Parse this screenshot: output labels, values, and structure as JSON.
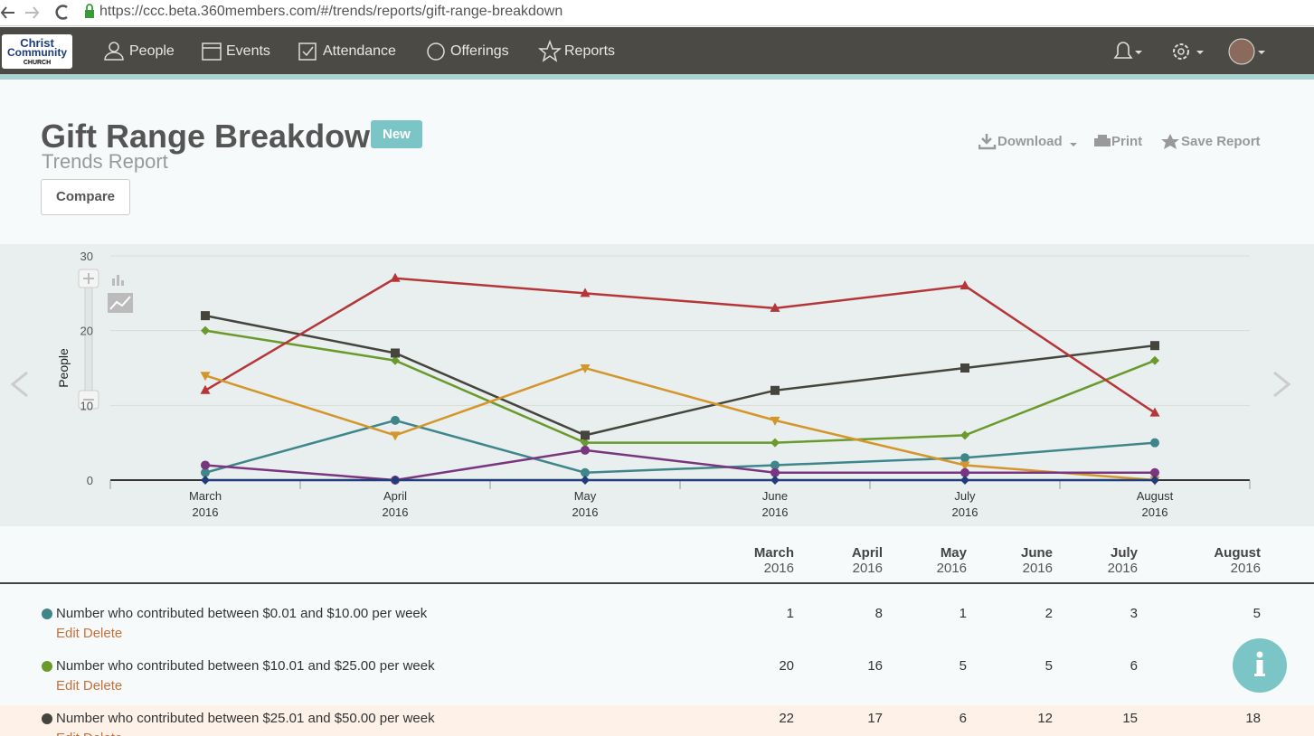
{
  "browser": {
    "url": "https://ccc.beta.360members.com/#/trends/reports/gift-range-breakdown"
  },
  "nav": {
    "logo": [
      "Christ",
      "Community",
      "CHURCH"
    ],
    "items": [
      "People",
      "Events",
      "Attendance",
      "Offerings",
      "Reports"
    ]
  },
  "header": {
    "title": "Gift Range Breakdown",
    "badge": "New",
    "subtitle": "Trends Report",
    "compare": "Compare",
    "actions": [
      "Download",
      "Print",
      "Save Report"
    ]
  },
  "chart_data": {
    "type": "line",
    "y_label": "People",
    "categories": [
      "March 2016",
      "April 2016",
      "May 2016",
      "June 2016",
      "July 2016",
      "August 2016"
    ],
    "ylim": [
      0,
      30
    ],
    "yticks": [
      0,
      10,
      20,
      30
    ],
    "grid": true,
    "series": [
      {
        "name": "Number who contributed between $0.01 and $10.00 per week",
        "color": "#3f868a",
        "marker": "circle",
        "values": [
          1,
          8,
          1,
          2,
          3,
          5
        ]
      },
      {
        "name": "Number who contributed between $10.01 and $25.00 per week",
        "color": "#6a9a2c",
        "marker": "diamond",
        "values": [
          20,
          16,
          5,
          5,
          6,
          16
        ]
      },
      {
        "name": "Number who contributed between $25.01 and $50.00 per week",
        "color": "#45443d",
        "marker": "square",
        "values": [
          22,
          17,
          6,
          12,
          15,
          18
        ]
      },
      {
        "color": "#b53538",
        "marker": "triangle",
        "values": [
          12,
          27,
          25,
          23,
          26,
          9
        ]
      },
      {
        "color": "#d4962b",
        "marker": "triangle-down",
        "values": [
          14,
          6,
          15,
          8,
          2,
          0
        ]
      },
      {
        "color": "#7a3580",
        "marker": "circle",
        "values": [
          2,
          0,
          4,
          1,
          1,
          1
        ]
      },
      {
        "color": "#203d7a",
        "marker": "diamond",
        "values": [
          0,
          0,
          0,
          0,
          0,
          0
        ]
      }
    ]
  },
  "table": {
    "row_actions": [
      "Edit",
      "Delete"
    ]
  }
}
